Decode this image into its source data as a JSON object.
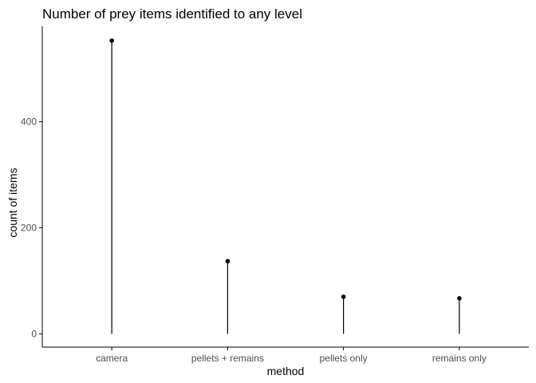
{
  "chart_data": {
    "type": "lollipop",
    "title": "Number of prey items identified to any level",
    "xlabel": "method",
    "ylabel": "count of items",
    "categories": [
      "camera",
      "pellets + remains",
      "pellets only",
      "remains only"
    ],
    "values": [
      553,
      137,
      70,
      67
    ],
    "yticks": [
      0,
      200,
      400
    ],
    "ylim": [
      -25,
      580
    ],
    "grid": false,
    "legend": "none",
    "colors": {
      "stem": "#000000",
      "point": "#000000",
      "axis": "#000000",
      "tick_label": "#4d4d4d"
    }
  }
}
